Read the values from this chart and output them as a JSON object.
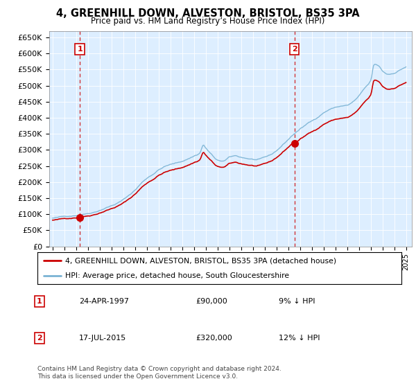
{
  "title": "4, GREENHILL DOWN, ALVESTON, BRISTOL, BS35 3PA",
  "subtitle": "Price paid vs. HM Land Registry’s House Price Index (HPI)",
  "ylim": [
    0,
    670000
  ],
  "yticks": [
    0,
    50000,
    100000,
    150000,
    200000,
    250000,
    300000,
    350000,
    400000,
    450000,
    500000,
    550000,
    600000,
    650000
  ],
  "ytick_labels": [
    "£0",
    "£50K",
    "£100K",
    "£150K",
    "£200K",
    "£250K",
    "£300K",
    "£350K",
    "£400K",
    "£450K",
    "£500K",
    "£550K",
    "£600K",
    "£650K"
  ],
  "xlim_start": 1994.7,
  "xlim_end": 2025.5,
  "xticks": [
    1995,
    1996,
    1997,
    1998,
    1999,
    2000,
    2001,
    2002,
    2003,
    2004,
    2005,
    2006,
    2007,
    2008,
    2009,
    2010,
    2011,
    2012,
    2013,
    2014,
    2015,
    2016,
    2017,
    2018,
    2019,
    2020,
    2021,
    2022,
    2023,
    2024,
    2025
  ],
  "sale1_x": 1997.31,
  "sale1_y": 90000,
  "sale2_x": 2015.54,
  "sale2_y": 320000,
  "hpi_color": "#7ab3d4",
  "price_color": "#cc0000",
  "dashed_color": "#cc0000",
  "chart_bg": "#ddeeff",
  "legend_label1": "4, GREENHILL DOWN, ALVESTON, BRISTOL, BS35 3PA (detached house)",
  "legend_label2": "HPI: Average price, detached house, South Gloucestershire",
  "table_row1": [
    "1",
    "24-APR-1997",
    "£90,000",
    "9% ↓ HPI"
  ],
  "table_row2": [
    "2",
    "17-JUL-2015",
    "£320,000",
    "12% ↓ HPI"
  ],
  "footnote": "Contains HM Land Registry data © Crown copyright and database right 2024.\nThis data is licensed under the Open Government Licence v3.0.",
  "bg_color": "#ffffff",
  "grid_color": "#ffffff"
}
